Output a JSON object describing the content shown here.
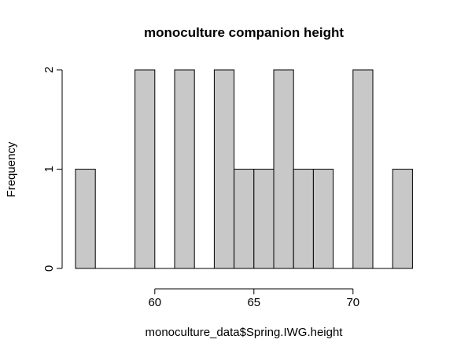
{
  "chart_data": {
    "type": "bar",
    "title": "monoculture companion height",
    "xlabel": "monoculture_data$Spring.IWG.height",
    "ylabel": "Frequency",
    "bin_width": 1,
    "bins": [
      {
        "start": 56,
        "end": 57,
        "count": 1
      },
      {
        "start": 57,
        "end": 58,
        "count": 0
      },
      {
        "start": 58,
        "end": 59,
        "count": 0
      },
      {
        "start": 59,
        "end": 60,
        "count": 2
      },
      {
        "start": 60,
        "end": 61,
        "count": 0
      },
      {
        "start": 61,
        "end": 62,
        "count": 2
      },
      {
        "start": 62,
        "end": 63,
        "count": 0
      },
      {
        "start": 63,
        "end": 64,
        "count": 2
      },
      {
        "start": 64,
        "end": 65,
        "count": 1
      },
      {
        "start": 65,
        "end": 66,
        "count": 1
      },
      {
        "start": 66,
        "end": 67,
        "count": 2
      },
      {
        "start": 67,
        "end": 68,
        "count": 1
      },
      {
        "start": 68,
        "end": 69,
        "count": 1
      },
      {
        "start": 69,
        "end": 70,
        "count": 0
      },
      {
        "start": 70,
        "end": 71,
        "count": 2
      },
      {
        "start": 71,
        "end": 72,
        "count": 0
      },
      {
        "start": 72,
        "end": 73,
        "count": 1
      }
    ],
    "xlim": [
      56,
      73
    ],
    "ylim": [
      0,
      2
    ],
    "x_ticks": [
      "60",
      "65",
      "70"
    ],
    "y_ticks": [
      "0",
      "1",
      "2"
    ],
    "bar_color": "#c8c8c8",
    "grid": false,
    "legend": "none"
  }
}
